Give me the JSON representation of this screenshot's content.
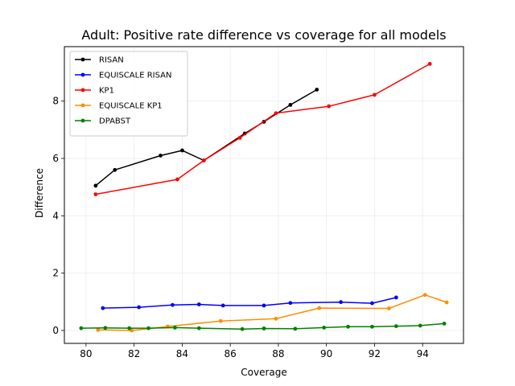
{
  "chart_data": {
    "type": "line",
    "title": "Adult: Positive rate difference vs coverage for all models",
    "xlabel": "Coverage",
    "ylabel": "Difference",
    "xlim": [
      79.1,
      95.7
    ],
    "ylim": [
      -0.45,
      9.9
    ],
    "xticks": [
      80,
      82,
      84,
      86,
      88,
      90,
      92,
      94
    ],
    "yticks": [
      0,
      2,
      4,
      6,
      8
    ],
    "grid": true,
    "legend_position": "top-left",
    "series": [
      {
        "name": "RISAN",
        "color": "#000000",
        "x": [
          80.4,
          81.2,
          83.1,
          84.0,
          84.9,
          86.6,
          87.4,
          88.5,
          89.6
        ],
        "y": [
          5.05,
          5.6,
          6.1,
          6.28,
          5.93,
          6.87,
          7.28,
          7.87,
          8.4
        ]
      },
      {
        "name": "EQUISCALE RISAN",
        "color": "#0000ff",
        "x": [
          80.7,
          82.2,
          83.6,
          84.7,
          85.7,
          87.4,
          88.5,
          90.6,
          91.9,
          92.9
        ],
        "y": [
          0.78,
          0.81,
          0.89,
          0.91,
          0.87,
          0.87,
          0.96,
          0.99,
          0.95,
          1.15
        ]
      },
      {
        "name": "KP1",
        "color": "#ff0000",
        "x": [
          80.4,
          83.8,
          84.9,
          86.4,
          87.9,
          90.1,
          92.0,
          94.3
        ],
        "y": [
          4.75,
          5.27,
          5.93,
          6.72,
          7.58,
          7.82,
          8.22,
          9.3
        ]
      },
      {
        "name": "EQUISCALE KP1",
        "color": "#ff8c00",
        "x": [
          80.5,
          81.9,
          83.4,
          85.6,
          87.9,
          89.7,
          92.6,
          94.1,
          95.0
        ],
        "y": [
          0.02,
          0.0,
          0.14,
          0.33,
          0.41,
          0.78,
          0.77,
          1.24,
          0.98
        ]
      },
      {
        "name": "DPABST",
        "color": "#008000",
        "x": [
          79.8,
          80.8,
          81.8,
          82.6,
          83.7,
          84.7,
          86.5,
          87.4,
          88.7,
          89.9,
          90.9,
          91.9,
          92.9,
          93.9,
          94.9
        ],
        "y": [
          0.08,
          0.09,
          0.08,
          0.08,
          0.1,
          0.08,
          0.05,
          0.07,
          0.06,
          0.1,
          0.13,
          0.13,
          0.15,
          0.17,
          0.24
        ]
      }
    ]
  }
}
